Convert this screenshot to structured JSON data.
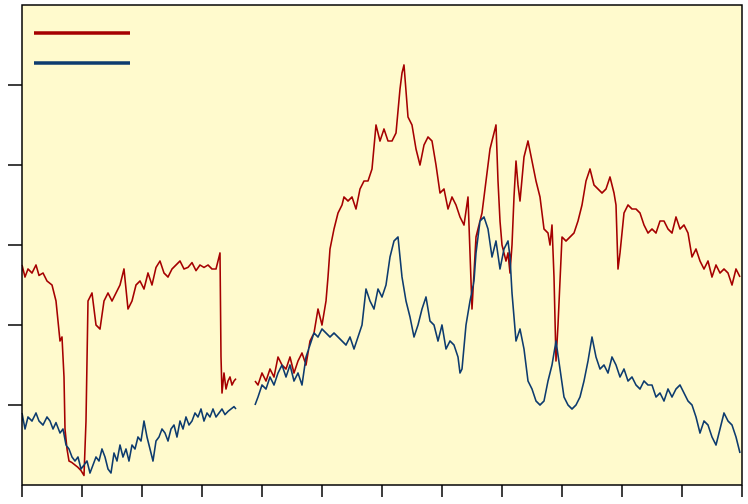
{
  "colors": {
    "plot_background": "#FFFACD",
    "axis": "#000000",
    "series_red": "#A50000",
    "series_blue": "#0D3B6E"
  },
  "chart_data": {
    "type": "line",
    "title": "",
    "xlabel": "",
    "ylabel": "",
    "xlim": [
      0,
      720
    ],
    "ylim": [
      0,
      6
    ],
    "grid": false,
    "legend_position": "top-left",
    "x_tick_count": 12,
    "y_tick_count": 5,
    "series": [
      {
        "color": "#A50000",
        "segments": [
          {
            "x": [
              0,
              3,
              6,
              10,
              14,
              17,
              21,
              25,
              30,
              34,
              38,
              40,
              42,
              43,
              45,
              47,
              50,
              53,
              56,
              59,
              62,
              64,
              66,
              68,
              70,
              74,
              78,
              82,
              86,
              90,
              94,
              98,
              102,
              106,
              110,
              114,
              118,
              122,
              126,
              130,
              134,
              138,
              142,
              146,
              150,
              154,
              158,
              162,
              166,
              170,
              174,
              178,
              182,
              186,
              190,
              194,
              198,
              199,
              200,
              202,
              204,
              206,
              208,
              210,
              212,
              214
            ],
            "y": [
              2.75,
              2.6,
              2.7,
              2.65,
              2.75,
              2.62,
              2.65,
              2.55,
              2.5,
              2.3,
              1.8,
              1.85,
              1.35,
              0.7,
              0.45,
              0.3,
              0.28,
              0.25,
              0.22,
              0.18,
              0.12,
              0.8,
              2.3,
              2.35,
              2.4,
              2.0,
              1.95,
              2.3,
              2.4,
              2.3,
              2.4,
              2.5,
              2.7,
              2.2,
              2.3,
              2.5,
              2.55,
              2.45,
              2.65,
              2.5,
              2.72,
              2.8,
              2.65,
              2.6,
              2.7,
              2.75,
              2.8,
              2.7,
              2.72,
              2.78,
              2.68,
              2.75,
              2.72,
              2.75,
              2.7,
              2.7,
              2.9,
              1.6,
              1.15,
              1.4,
              1.2,
              1.3,
              1.35,
              1.25,
              1.3,
              1.33
            ]
          },
          {
            "x": [
              233,
              236,
              240,
              244,
              248,
              252,
              256,
              260,
              264,
              268,
              272,
              276,
              280,
              284,
              288,
              292,
              296,
              300,
              304,
              306,
              308,
              312,
              316,
              320,
              322,
              326,
              330,
              334,
              338,
              342,
              346,
              350,
              354,
              358,
              362,
              366,
              370,
              374,
              378,
              380,
              382,
              386,
              390,
              394,
              398,
              402,
              406,
              410,
              414,
              418,
              422,
              426,
              430,
              434,
              438,
              440,
              442,
              446,
              450,
              454,
              458,
              460,
              464,
              468,
              472,
              474,
              476,
              478,
              480,
              484,
              486,
              488,
              490,
              492,
              494,
              496,
              498,
              502,
              506,
              510,
              514,
              518,
              522,
              526,
              528,
              530,
              532,
              534,
              536,
              540,
              544,
              548,
              552,
              556,
              560,
              564,
              568,
              572,
              576,
              580,
              584,
              588,
              592,
              594,
              596,
              598,
              602,
              606,
              610,
              614,
              618,
              622,
              626,
              630,
              634,
              638,
              642,
              646,
              650,
              654,
              658,
              662,
              666,
              670,
              674,
              678,
              682,
              686,
              690,
              694,
              698,
              702,
              706,
              710,
              714,
              718
            ],
            "y": [
              1.3,
              1.25,
              1.4,
              1.3,
              1.45,
              1.35,
              1.6,
              1.5,
              1.45,
              1.6,
              1.4,
              1.55,
              1.65,
              1.5,
              1.8,
              1.9,
              2.2,
              2.0,
              2.3,
              2.6,
              2.95,
              3.2,
              3.4,
              3.5,
              3.6,
              3.55,
              3.6,
              3.45,
              3.7,
              3.8,
              3.8,
              3.95,
              4.5,
              4.3,
              4.45,
              4.3,
              4.3,
              4.4,
              4.95,
              5.15,
              5.25,
              4.6,
              4.5,
              4.2,
              4.0,
              4.25,
              4.35,
              4.3,
              4.0,
              3.65,
              3.7,
              3.45,
              3.6,
              3.5,
              3.35,
              3.3,
              3.25,
              3.6,
              2.2,
              3.1,
              3.3,
              3.4,
              3.8,
              4.2,
              4.4,
              4.5,
              3.8,
              3.3,
              3.0,
              2.8,
              2.9,
              2.65,
              3.0,
              3.6,
              4.05,
              3.75,
              3.55,
              4.1,
              4.3,
              4.05,
              3.8,
              3.6,
              3.2,
              3.15,
              3.0,
              3.25,
              2.6,
              1.55,
              2.0,
              3.1,
              3.05,
              3.1,
              3.15,
              3.3,
              3.5,
              3.8,
              3.95,
              3.75,
              3.7,
              3.65,
              3.7,
              3.85,
              3.65,
              3.5,
              2.7,
              2.9,
              3.4,
              3.5,
              3.45,
              3.45,
              3.4,
              3.25,
              3.15,
              3.2,
              3.15,
              3.3,
              3.3,
              3.2,
              3.15,
              3.35,
              3.2,
              3.25,
              3.15,
              2.85,
              2.95,
              2.8,
              2.7,
              2.8,
              2.6,
              2.75,
              2.65,
              2.7,
              2.65,
              2.5,
              2.7,
              2.6
            ]
          }
        ]
      },
      {
        "color": "#0D3B6E",
        "segments": [
          {
            "x": [
              0,
              3,
              6,
              10,
              14,
              17,
              21,
              25,
              28,
              31,
              34,
              38,
              41,
              44,
              47,
              50,
              53,
              56,
              59,
              62,
              65,
              68,
              71,
              74,
              77,
              80,
              83,
              86,
              89,
              92,
              95,
              98,
              101,
              104,
              107,
              110,
              113,
              116,
              119,
              122,
              125,
              128,
              131,
              134,
              137,
              140,
              143,
              146,
              149,
              152,
              155,
              158,
              161,
              164,
              167,
              170,
              173,
              176,
              179,
              182,
              185,
              188,
              191,
              194,
              197,
              200,
              203,
              206,
              209,
              212,
              214
            ],
            "y": [
              0.9,
              0.7,
              0.85,
              0.8,
              0.9,
              0.8,
              0.75,
              0.85,
              0.8,
              0.7,
              0.78,
              0.65,
              0.7,
              0.5,
              0.45,
              0.35,
              0.3,
              0.35,
              0.2,
              0.25,
              0.3,
              0.15,
              0.25,
              0.35,
              0.3,
              0.45,
              0.35,
              0.2,
              0.15,
              0.4,
              0.3,
              0.5,
              0.35,
              0.45,
              0.3,
              0.5,
              0.45,
              0.6,
              0.55,
              0.8,
              0.6,
              0.45,
              0.3,
              0.55,
              0.6,
              0.7,
              0.65,
              0.55,
              0.7,
              0.75,
              0.6,
              0.8,
              0.7,
              0.85,
              0.75,
              0.8,
              0.9,
              0.85,
              0.95,
              0.8,
              0.9,
              0.85,
              0.95,
              0.85,
              0.9,
              0.95,
              0.88,
              0.92,
              0.95,
              0.98,
              0.95
            ]
          },
          {
            "x": [
              233,
              236,
              240,
              244,
              248,
              252,
              256,
              260,
              264,
              268,
              272,
              276,
              280,
              284,
              288,
              292,
              296,
              300,
              304,
              308,
              312,
              316,
              320,
              324,
              328,
              332,
              336,
              340,
              344,
              348,
              352,
              356,
              360,
              364,
              368,
              372,
              376,
              380,
              384,
              388,
              392,
              396,
              400,
              404,
              408,
              412,
              416,
              420,
              424,
              428,
              432,
              436,
              438,
              440,
              444,
              448,
              452,
              454,
              456,
              458,
              462,
              466,
              470,
              474,
              478,
              482,
              486,
              488,
              490,
              494,
              498,
              502,
              506,
              510,
              514,
              518,
              522,
              526,
              530,
              534,
              538,
              542,
              546,
              550,
              554,
              558,
              562,
              566,
              570,
              574,
              578,
              582,
              586,
              590,
              594,
              598,
              602,
              606,
              610,
              614,
              618,
              622,
              626,
              630,
              634,
              638,
              642,
              646,
              650,
              654,
              658,
              662,
              666,
              670,
              674,
              678,
              682,
              686,
              690,
              694,
              698,
              702,
              706,
              710,
              714,
              718
            ],
            "y": [
              1.0,
              1.1,
              1.25,
              1.2,
              1.35,
              1.25,
              1.4,
              1.5,
              1.35,
              1.5,
              1.3,
              1.4,
              1.25,
              1.6,
              1.75,
              1.9,
              1.85,
              1.95,
              1.9,
              1.85,
              1.9,
              1.85,
              1.8,
              1.75,
              1.85,
              1.7,
              1.85,
              2.0,
              2.45,
              2.3,
              2.2,
              2.45,
              2.35,
              2.5,
              2.85,
              3.05,
              3.1,
              2.6,
              2.3,
              2.1,
              1.85,
              2.0,
              2.2,
              2.35,
              2.05,
              2.0,
              1.8,
              2.0,
              1.7,
              1.8,
              1.75,
              1.6,
              1.4,
              1.45,
              2.0,
              2.3,
              2.55,
              2.9,
              3.1,
              3.3,
              3.35,
              3.2,
              2.85,
              3.05,
              2.7,
              2.95,
              3.05,
              2.85,
              2.4,
              1.8,
              1.95,
              1.7,
              1.3,
              1.2,
              1.05,
              1.0,
              1.05,
              1.3,
              1.5,
              1.8,
              1.45,
              1.1,
              1.0,
              0.95,
              1.0,
              1.1,
              1.3,
              1.55,
              1.85,
              1.6,
              1.45,
              1.5,
              1.4,
              1.6,
              1.5,
              1.35,
              1.45,
              1.3,
              1.35,
              1.25,
              1.2,
              1.3,
              1.25,
              1.25,
              1.1,
              1.15,
              1.05,
              1.2,
              1.1,
              1.2,
              1.25,
              1.15,
              1.05,
              1.0,
              0.85,
              0.65,
              0.8,
              0.75,
              0.6,
              0.5,
              0.7,
              0.9,
              0.8,
              0.75,
              0.6,
              0.4
            ]
          }
        ]
      }
    ]
  }
}
